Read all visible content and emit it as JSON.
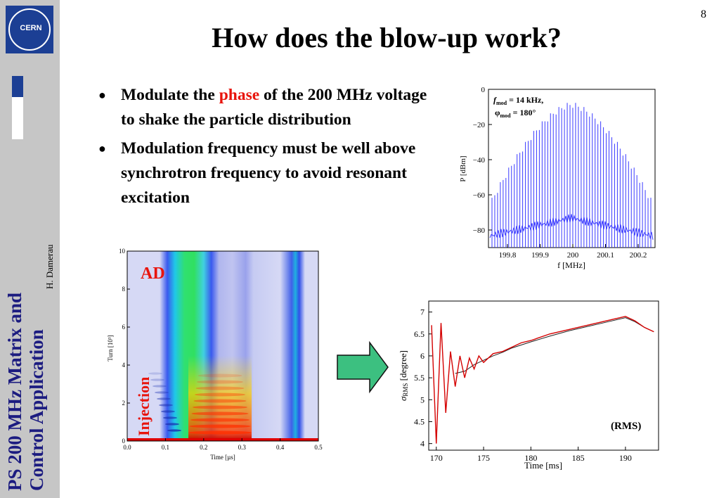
{
  "sidebar": {
    "logo_text": "CERN",
    "title_line1": "PS 200 MHz Matrix and",
    "title_line2": "Control Application",
    "author": "H. Damerau"
  },
  "page_number": "8",
  "title": "How does the blow-up work?",
  "bullets": [
    {
      "pre": "Modulate the ",
      "highlight": "phase",
      "post": " of the 200 MHz voltage to shake the particle distribution"
    },
    {
      "text": "Modulation frequency must be well above synchrotron frequency to avoid resonant excitation"
    }
  ],
  "spectrum": {
    "ylabel": "P [dBm]",
    "xlabel": "f [MHz]",
    "yticks": [
      "0",
      "−20",
      "−40",
      "−60",
      "−80"
    ],
    "xticks": [
      "199.8",
      "199.9",
      "200",
      "200.1",
      "200.2"
    ],
    "annotation_line1": "f",
    "annotation_sub1": "mod",
    "annotation_rest1": " = 14 kHz,",
    "annotation_line2": "φ",
    "annotation_sub2": "mod",
    "annotation_rest2": " = 180°",
    "color": "#3a3aff"
  },
  "waterfall": {
    "ylabel": "Turn [10³]",
    "xlabel": "Time [µs]",
    "yticks": [
      "0",
      "2",
      "4",
      "6",
      "8",
      "10"
    ],
    "xticks": [
      "0.0",
      "0.1",
      "0.2",
      "0.3",
      "0.4",
      "0.5"
    ],
    "label_ad": "AD",
    "label_injection": "Injection"
  },
  "rms_chart": {
    "ylabel_sigma": "σ",
    "ylabel_sub": "RMS",
    "ylabel_rest": " [degree]",
    "xlabel": "Time [ms]",
    "yticks": [
      "4",
      "4.5",
      "5",
      "5.5",
      "6",
      "6.5",
      "7"
    ],
    "xticks": [
      "170",
      "175",
      "180",
      "185",
      "190"
    ],
    "label": "(RMS)",
    "color_measured": "#d40000",
    "color_sim": "#222222"
  },
  "chart_data": {
    "type": "line",
    "title": "",
    "xlabel": "Time [ms]",
    "ylabel": "σRMS [degree]",
    "xlim": [
      169.2,
      193.5
    ],
    "ylim": [
      3.85,
      7.25
    ],
    "series": [
      {
        "x": [
          169.5,
          170.0,
          170.5,
          171.0,
          171.5,
          172.0,
          172.5,
          173.0,
          173.5,
          174.0,
          174.5,
          175.0,
          176.0,
          177.0,
          178.0,
          179.0,
          180.0,
          182.0,
          184.0,
          186.0,
          188.0,
          189.0,
          190.0,
          191.0,
          192.0,
          193.0
        ],
        "y": [
          6.7,
          4.0,
          6.75,
          4.7,
          6.1,
          5.3,
          6.0,
          5.5,
          5.95,
          5.7,
          6.0,
          5.85,
          6.05,
          6.1,
          6.2,
          6.3,
          6.35,
          6.5,
          6.6,
          6.7,
          6.8,
          6.85,
          6.9,
          6.8,
          6.65,
          6.55
        ]
      },
      {
        "x": [
          172.0,
          173.0,
          174.0,
          175.0,
          176.0,
          177.0,
          178.0,
          180.0,
          182.0,
          184.0,
          186.0,
          188.0,
          190.0,
          191.0,
          192.0,
          193.0
        ],
        "y": [
          5.6,
          5.65,
          5.8,
          5.9,
          6.0,
          6.08,
          6.18,
          6.32,
          6.45,
          6.57,
          6.67,
          6.77,
          6.87,
          6.78,
          6.65,
          6.55
        ]
      }
    ]
  }
}
